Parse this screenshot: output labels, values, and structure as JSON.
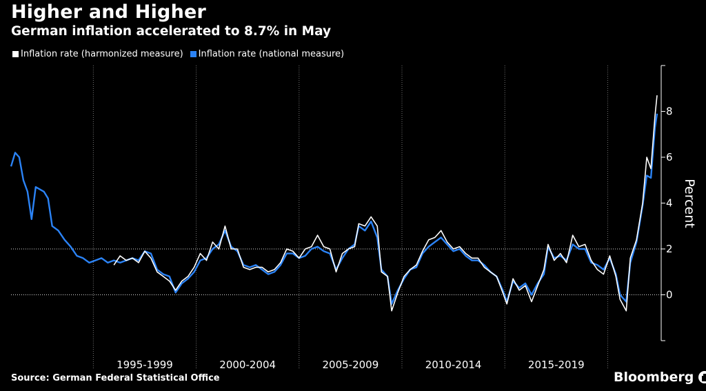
{
  "header": {
    "title": "Higher and Higher",
    "subtitle": "German inflation accelerated to 8.7% in May"
  },
  "legend": {
    "items": [
      {
        "label": "Inflation rate (harmonized measure)",
        "color": "#ffffff"
      },
      {
        "label": "Inflation rate (national measure)",
        "color": "#2b83f6"
      }
    ]
  },
  "footer": {
    "source": "Source: German Federal Statistical Office",
    "brand": "Bloomberg"
  },
  "colors": {
    "background": "#000000",
    "harmonized": "#ffffff",
    "national": "#2b83f6"
  },
  "chart_data": {
    "type": "line",
    "ylabel": "Percent",
    "ylim": [
      -2,
      10
    ],
    "yticks": [
      0,
      2,
      4,
      6,
      8
    ],
    "xlim": [
      1991.0,
      2022.6
    ],
    "x_periods": [
      {
        "label": "1995-1999",
        "start": 1995,
        "end": 2000
      },
      {
        "label": "2000-2004",
        "start": 2000,
        "end": 2005
      },
      {
        "label": "2005-2009",
        "start": 2005,
        "end": 2010
      },
      {
        "label": "2010-2014",
        "start": 2010,
        "end": 2015
      },
      {
        "label": "2015-2019",
        "start": 2015,
        "end": 2020
      }
    ],
    "dotted_gridlines": [
      0,
      2
    ],
    "grid": "vertical dotted at period boundaries",
    "series": [
      {
        "name": "Inflation rate (harmonized measure)",
        "points": [
          [
            1996.0,
            1.3
          ],
          [
            1996.3,
            1.7
          ],
          [
            1996.6,
            1.5
          ],
          [
            1996.9,
            1.6
          ],
          [
            1997.2,
            1.4
          ],
          [
            1997.5,
            1.9
          ],
          [
            1997.8,
            1.6
          ],
          [
            1998.1,
            1.0
          ],
          [
            1998.4,
            0.8
          ],
          [
            1998.7,
            0.6
          ],
          [
            1999.0,
            0.2
          ],
          [
            1999.3,
            0.6
          ],
          [
            1999.6,
            0.8
          ],
          [
            1999.9,
            1.2
          ],
          [
            2000.2,
            1.8
          ],
          [
            2000.5,
            1.5
          ],
          [
            2000.8,
            2.3
          ],
          [
            2001.1,
            2.0
          ],
          [
            2001.4,
            3.0
          ],
          [
            2001.7,
            2.0
          ],
          [
            2002.0,
            2.0
          ],
          [
            2002.3,
            1.2
          ],
          [
            2002.6,
            1.1
          ],
          [
            2002.9,
            1.2
          ],
          [
            2003.2,
            1.2
          ],
          [
            2003.5,
            1.0
          ],
          [
            2003.8,
            1.1
          ],
          [
            2004.1,
            1.4
          ],
          [
            2004.4,
            2.0
          ],
          [
            2004.7,
            1.9
          ],
          [
            2005.0,
            1.6
          ],
          [
            2005.3,
            2.0
          ],
          [
            2005.6,
            2.1
          ],
          [
            2005.9,
            2.6
          ],
          [
            2006.2,
            2.1
          ],
          [
            2006.5,
            2.0
          ],
          [
            2006.8,
            1.0
          ],
          [
            2007.1,
            1.8
          ],
          [
            2007.4,
            2.0
          ],
          [
            2007.7,
            2.1
          ],
          [
            2007.9,
            3.1
          ],
          [
            2008.2,
            3.0
          ],
          [
            2008.5,
            3.4
          ],
          [
            2008.8,
            3.0
          ],
          [
            2009.0,
            1.0
          ],
          [
            2009.3,
            0.8
          ],
          [
            2009.5,
            -0.7
          ],
          [
            2009.8,
            0.1
          ],
          [
            2010.1,
            0.8
          ],
          [
            2010.4,
            1.1
          ],
          [
            2010.7,
            1.3
          ],
          [
            2011.0,
            1.9
          ],
          [
            2011.3,
            2.4
          ],
          [
            2011.6,
            2.5
          ],
          [
            2011.9,
            2.8
          ],
          [
            2012.2,
            2.3
          ],
          [
            2012.5,
            2.0
          ],
          [
            2012.8,
            2.1
          ],
          [
            2013.1,
            1.8
          ],
          [
            2013.4,
            1.6
          ],
          [
            2013.7,
            1.6
          ],
          [
            2014.0,
            1.2
          ],
          [
            2014.3,
            1.0
          ],
          [
            2014.6,
            0.8
          ],
          [
            2014.9,
            0.1
          ],
          [
            2015.1,
            -0.4
          ],
          [
            2015.4,
            0.7
          ],
          [
            2015.7,
            0.2
          ],
          [
            2016.0,
            0.4
          ],
          [
            2016.3,
            -0.3
          ],
          [
            2016.6,
            0.4
          ],
          [
            2016.9,
            1.1
          ],
          [
            2017.1,
            2.2
          ],
          [
            2017.4,
            1.5
          ],
          [
            2017.7,
            1.8
          ],
          [
            2018.0,
            1.4
          ],
          [
            2018.3,
            2.6
          ],
          [
            2018.6,
            2.1
          ],
          [
            2018.9,
            2.2
          ],
          [
            2019.2,
            1.5
          ],
          [
            2019.5,
            1.1
          ],
          [
            2019.8,
            0.9
          ],
          [
            2020.1,
            1.7
          ],
          [
            2020.4,
            0.8
          ],
          [
            2020.6,
            -0.2
          ],
          [
            2020.9,
            -0.7
          ],
          [
            2021.1,
            1.6
          ],
          [
            2021.4,
            2.4
          ],
          [
            2021.7,
            4.0
          ],
          [
            2021.9,
            6.0
          ],
          [
            2022.1,
            5.5
          ],
          [
            2022.3,
            7.8
          ],
          [
            2022.4,
            8.7
          ]
        ]
      },
      {
        "name": "Inflation rate (national measure)",
        "points": [
          [
            1991.0,
            5.6
          ],
          [
            1991.2,
            6.2
          ],
          [
            1991.4,
            6.0
          ],
          [
            1991.6,
            5.0
          ],
          [
            1991.8,
            4.5
          ],
          [
            1992.0,
            3.3
          ],
          [
            1992.2,
            4.7
          ],
          [
            1992.4,
            4.6
          ],
          [
            1992.6,
            4.5
          ],
          [
            1992.8,
            4.2
          ],
          [
            1993.0,
            3.0
          ],
          [
            1993.3,
            2.8
          ],
          [
            1993.6,
            2.4
          ],
          [
            1993.9,
            2.1
          ],
          [
            1994.2,
            1.7
          ],
          [
            1994.5,
            1.6
          ],
          [
            1994.8,
            1.4
          ],
          [
            1995.1,
            1.5
          ],
          [
            1995.4,
            1.6
          ],
          [
            1995.7,
            1.4
          ],
          [
            1996.0,
            1.5
          ],
          [
            1996.3,
            1.4
          ],
          [
            1996.6,
            1.5
          ],
          [
            1996.9,
            1.6
          ],
          [
            1997.2,
            1.5
          ],
          [
            1997.5,
            1.9
          ],
          [
            1997.8,
            1.8
          ],
          [
            1998.1,
            1.1
          ],
          [
            1998.4,
            0.9
          ],
          [
            1998.7,
            0.8
          ],
          [
            1999.0,
            0.1
          ],
          [
            1999.3,
            0.5
          ],
          [
            1999.6,
            0.7
          ],
          [
            1999.9,
            1.0
          ],
          [
            2000.2,
            1.5
          ],
          [
            2000.5,
            1.6
          ],
          [
            2000.8,
            2.0
          ],
          [
            2001.1,
            2.2
          ],
          [
            2001.4,
            2.8
          ],
          [
            2001.7,
            2.1
          ],
          [
            2002.0,
            1.9
          ],
          [
            2002.3,
            1.3
          ],
          [
            2002.6,
            1.2
          ],
          [
            2002.9,
            1.3
          ],
          [
            2003.2,
            1.1
          ],
          [
            2003.5,
            0.9
          ],
          [
            2003.8,
            1.0
          ],
          [
            2004.1,
            1.3
          ],
          [
            2004.4,
            1.8
          ],
          [
            2004.7,
            1.8
          ],
          [
            2005.0,
            1.6
          ],
          [
            2005.3,
            1.7
          ],
          [
            2005.6,
            2.0
          ],
          [
            2005.9,
            2.1
          ],
          [
            2006.2,
            1.9
          ],
          [
            2006.5,
            1.8
          ],
          [
            2006.8,
            1.1
          ],
          [
            2007.1,
            1.6
          ],
          [
            2007.4,
            2.0
          ],
          [
            2007.7,
            2.2
          ],
          [
            2007.9,
            3.0
          ],
          [
            2008.2,
            2.8
          ],
          [
            2008.5,
            3.2
          ],
          [
            2008.8,
            2.5
          ],
          [
            2009.0,
            1.1
          ],
          [
            2009.3,
            0.8
          ],
          [
            2009.5,
            -0.4
          ],
          [
            2009.8,
            0.2
          ],
          [
            2010.1,
            0.7
          ],
          [
            2010.4,
            1.1
          ],
          [
            2010.7,
            1.2
          ],
          [
            2011.0,
            1.8
          ],
          [
            2011.3,
            2.1
          ],
          [
            2011.6,
            2.3
          ],
          [
            2011.9,
            2.5
          ],
          [
            2012.2,
            2.2
          ],
          [
            2012.5,
            1.9
          ],
          [
            2012.8,
            2.0
          ],
          [
            2013.1,
            1.7
          ],
          [
            2013.4,
            1.5
          ],
          [
            2013.7,
            1.5
          ],
          [
            2014.0,
            1.3
          ],
          [
            2014.3,
            1.0
          ],
          [
            2014.6,
            0.8
          ],
          [
            2014.9,
            0.2
          ],
          [
            2015.1,
            -0.3
          ],
          [
            2015.4,
            0.6
          ],
          [
            2015.7,
            0.3
          ],
          [
            2016.0,
            0.5
          ],
          [
            2016.3,
            0.0
          ],
          [
            2016.6,
            0.5
          ],
          [
            2016.9,
            0.9
          ],
          [
            2017.1,
            2.1
          ],
          [
            2017.4,
            1.6
          ],
          [
            2017.7,
            1.7
          ],
          [
            2018.0,
            1.5
          ],
          [
            2018.3,
            2.2
          ],
          [
            2018.6,
            2.0
          ],
          [
            2018.9,
            2.0
          ],
          [
            2019.2,
            1.4
          ],
          [
            2019.5,
            1.3
          ],
          [
            2019.8,
            1.1
          ],
          [
            2020.1,
            1.6
          ],
          [
            2020.4,
            0.9
          ],
          [
            2020.6,
            0.0
          ],
          [
            2020.9,
            -0.3
          ],
          [
            2021.1,
            1.4
          ],
          [
            2021.4,
            2.3
          ],
          [
            2021.7,
            3.9
          ],
          [
            2021.9,
            5.2
          ],
          [
            2022.1,
            5.1
          ],
          [
            2022.3,
            7.3
          ],
          [
            2022.4,
            7.9
          ]
        ]
      }
    ]
  }
}
